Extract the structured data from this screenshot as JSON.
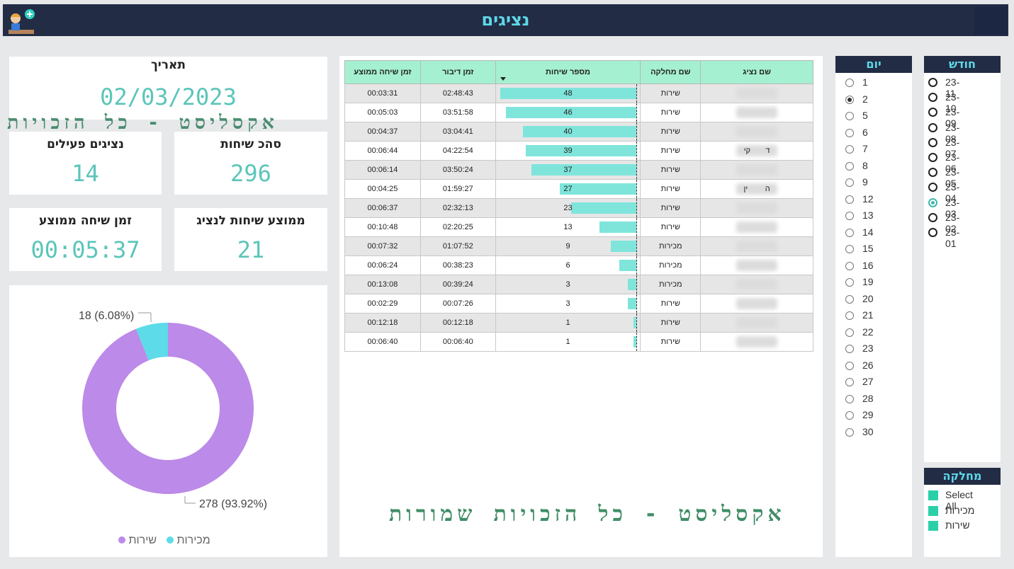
{
  "header": {
    "title": "נציגים"
  },
  "date_card": {
    "label": "תאריך",
    "value": "02/03/2023"
  },
  "watermark": {
    "top": "אקסליסט - כל הזכויות",
    "bottom": "אקסליסט - כל הזכויות שמורות"
  },
  "kpis": {
    "total_calls": {
      "label": "סהכ שיחות",
      "value": "296"
    },
    "active_reps": {
      "label": "נציגים פעילים",
      "value": "14"
    },
    "avg_calls_per_rep": {
      "label": "ממוצע שיחות לנציג",
      "value": "21"
    },
    "avg_call_time": {
      "label": "זמן שיחה ממוצע",
      "value": "00:05:37"
    }
  },
  "donut": {
    "label_small": "18 (6.08%)",
    "label_large": "278 (93.92%)",
    "legend": [
      {
        "name": "מכירות",
        "color": "#5ddbe8"
      },
      {
        "name": "שירות",
        "color": "#bc8ae8"
      }
    ]
  },
  "chart_data": {
    "type": "pie",
    "categories": [
      "שירות",
      "מכירות"
    ],
    "values": [
      278,
      18
    ],
    "percent_labels": [
      "93.92%",
      "6.08%"
    ],
    "colors": [
      "#bc8ae8",
      "#5ddbe8"
    ],
    "legend_position": "bottom"
  },
  "table": {
    "headers": [
      "זמן שיחה ממוצע",
      "זמן דיבור",
      "מספר שיחות",
      "שם מחלקה",
      "שם נציג"
    ],
    "max_calls": 48,
    "rows": [
      {
        "avg": "00:03:31",
        "talk": "02:48:43",
        "calls": 48,
        "dept": "שירות",
        "name": ""
      },
      {
        "avg": "00:05:03",
        "talk": "03:51:58",
        "calls": 46,
        "dept": "שירות",
        "name": ""
      },
      {
        "avg": "00:04:37",
        "talk": "03:04:41",
        "calls": 40,
        "dept": "שירות",
        "name": ""
      },
      {
        "avg": "00:06:44",
        "talk": "04:22:54",
        "calls": 39,
        "dept": "שירות",
        "name": "ד       קי"
      },
      {
        "avg": "00:06:14",
        "talk": "03:50:24",
        "calls": 37,
        "dept": "שירות",
        "name": ""
      },
      {
        "avg": "00:04:25",
        "talk": "01:59:27",
        "calls": 27,
        "dept": "שירות",
        "name": "ה        ין"
      },
      {
        "avg": "00:06:37",
        "talk": "02:32:13",
        "calls": 23,
        "dept": "שירות",
        "name": ""
      },
      {
        "avg": "00:10:48",
        "talk": "02:20:25",
        "calls": 13,
        "dept": "שירות",
        "name": ""
      },
      {
        "avg": "00:07:32",
        "talk": "01:07:52",
        "calls": 9,
        "dept": "מכירות",
        "name": ""
      },
      {
        "avg": "00:06:24",
        "talk": "00:38:23",
        "calls": 6,
        "dept": "מכירות",
        "name": ""
      },
      {
        "avg": "00:13:08",
        "talk": "00:39:24",
        "calls": 3,
        "dept": "מכירות",
        "name": ""
      },
      {
        "avg": "00:02:29",
        "talk": "00:07:26",
        "calls": 3,
        "dept": "שירות",
        "name": ""
      },
      {
        "avg": "00:12:18",
        "talk": "00:12:18",
        "calls": 1,
        "dept": "שירות",
        "name": ""
      },
      {
        "avg": "00:06:40",
        "talk": "00:06:40",
        "calls": 1,
        "dept": "שירות",
        "name": ""
      }
    ]
  },
  "day_slicer": {
    "title": "יום",
    "selected": "2",
    "items": [
      "1",
      "2",
      "5",
      "6",
      "7",
      "8",
      "9",
      "12",
      "13",
      "14",
      "15",
      "16",
      "19",
      "20",
      "21",
      "22",
      "23",
      "26",
      "27",
      "28",
      "29",
      "30"
    ]
  },
  "month_slicer": {
    "title": "חודש",
    "selected": "23-03",
    "items": [
      "23-11",
      "23-10",
      "23-09",
      "23-08",
      "23-07",
      "23-06",
      "23-05",
      "23-04",
      "23-03",
      "23-02",
      "23-01"
    ]
  },
  "dept_slicer": {
    "title": "מחלקה",
    "items": [
      "Select All",
      "מכירות",
      "שירות"
    ]
  }
}
